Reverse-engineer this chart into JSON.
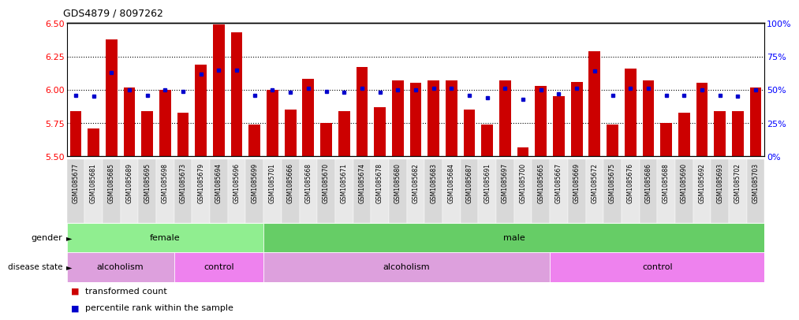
{
  "title": "GDS4879 / 8097262",
  "samples": [
    "GSM1085677",
    "GSM1085681",
    "GSM1085685",
    "GSM1085689",
    "GSM1085695",
    "GSM1085698",
    "GSM1085673",
    "GSM1085679",
    "GSM1085694",
    "GSM1085696",
    "GSM1085699",
    "GSM1085701",
    "GSM1085666",
    "GSM1085668",
    "GSM1085670",
    "GSM1085671",
    "GSM1085674",
    "GSM1085678",
    "GSM1085680",
    "GSM1085682",
    "GSM1085683",
    "GSM1085684",
    "GSM1085687",
    "GSM1085691",
    "GSM1085697",
    "GSM1085700",
    "GSM1085665",
    "GSM1085667",
    "GSM1085669",
    "GSM1085672",
    "GSM1085675",
    "GSM1085676",
    "GSM1085686",
    "GSM1085688",
    "GSM1085690",
    "GSM1085692",
    "GSM1085693",
    "GSM1085702",
    "GSM1085703"
  ],
  "bar_values": [
    5.84,
    5.71,
    6.38,
    6.02,
    5.84,
    6.0,
    5.83,
    6.19,
    6.49,
    6.43,
    5.74,
    6.0,
    5.85,
    6.08,
    5.75,
    5.84,
    6.17,
    5.87,
    6.07,
    6.05,
    6.07,
    6.07,
    5.85,
    5.74,
    6.07,
    5.57,
    6.03,
    5.95,
    6.06,
    6.29,
    5.74,
    6.16,
    6.07,
    5.75,
    5.83,
    6.05,
    5.84,
    5.84,
    6.02
  ],
  "percentile_values": [
    46,
    45,
    63,
    50,
    46,
    50,
    49,
    62,
    65,
    65,
    46,
    50,
    48,
    51,
    49,
    48,
    51,
    48,
    50,
    50,
    51,
    51,
    46,
    44,
    51,
    43,
    50,
    47,
    51,
    64,
    46,
    51,
    51,
    46,
    46,
    50,
    46,
    45,
    50
  ],
  "ymin": 5.5,
  "ymax": 6.5,
  "yticks": [
    5.5,
    5.75,
    6.0,
    6.25,
    6.5
  ],
  "y2ticks": [
    0,
    25,
    50,
    75,
    100
  ],
  "bar_color": "#CC0000",
  "dot_color": "#0000CC",
  "bar_width": 0.65,
  "grid_lines": [
    5.75,
    6.0,
    6.25
  ],
  "gender_groups": [
    {
      "label": "female",
      "start": 0,
      "end": 11,
      "color": "#90EE90"
    },
    {
      "label": "male",
      "start": 11,
      "end": 39,
      "color": "#66CD66"
    }
  ],
  "disease_groups": [
    {
      "label": "alcoholism",
      "start": 0,
      "end": 6,
      "color": "#DDA0DD"
    },
    {
      "label": "control",
      "start": 6,
      "end": 11,
      "color": "#EE82EE"
    },
    {
      "label": "alcoholism",
      "start": 11,
      "end": 27,
      "color": "#DDA0DD"
    },
    {
      "label": "control",
      "start": 27,
      "end": 39,
      "color": "#EE82EE"
    }
  ],
  "tick_bg_even": "#D8D8D8",
  "tick_bg_odd": "#E8E8E8",
  "legend_items": [
    {
      "color": "#CC0000",
      "label": "transformed count"
    },
    {
      "color": "#0000CC",
      "label": "percentile rank within the sample"
    }
  ]
}
